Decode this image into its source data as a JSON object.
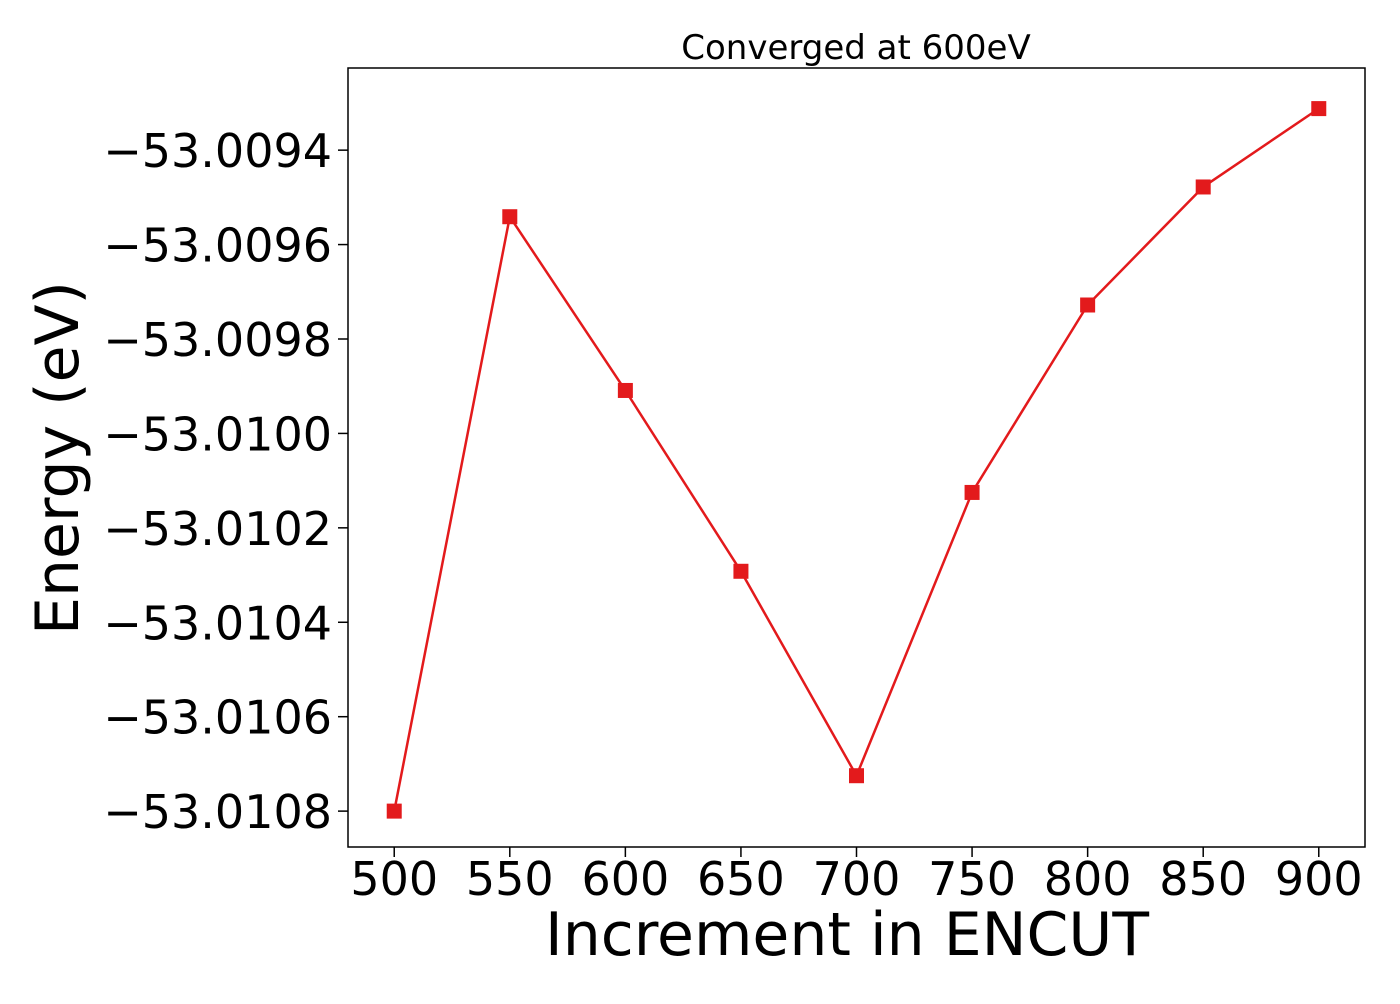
{
  "chart_data": {
    "type": "line",
    "title": "Converged at 600eV",
    "xlabel": "Increment in ENCUT",
    "ylabel": "Energy (eV)",
    "x": [
      500,
      550,
      600,
      650,
      700,
      750,
      800,
      850,
      900
    ],
    "series": [
      {
        "values": [
          -53.0108,
          -53.009541,
          -53.009909,
          -53.010292,
          -53.010725,
          -53.010125,
          -53.009728,
          -53.009478,
          -53.009312
        ],
        "color": "#e31a1c",
        "marker": "square"
      }
    ],
    "xticks": [
      500,
      550,
      600,
      650,
      700,
      750,
      800,
      850,
      900
    ],
    "xtick_labels": [
      "500",
      "550",
      "600",
      "650",
      "700",
      "750",
      "800",
      "850",
      "900"
    ],
    "yticks": [
      -53.0094,
      -53.0096,
      -53.0098,
      -53.01,
      -53.0102,
      -53.0104,
      -53.0106,
      -53.0108
    ],
    "ytick_labels": [
      "−53.0094",
      "−53.0096",
      "−53.0098",
      "−53.0100",
      "−53.0102",
      "−53.0104",
      "−53.0106",
      "−53.0108"
    ],
    "xlim": [
      480,
      920
    ],
    "ylim": [
      -53.010876,
      -53.009226
    ],
    "grid": false,
    "legend": false
  }
}
